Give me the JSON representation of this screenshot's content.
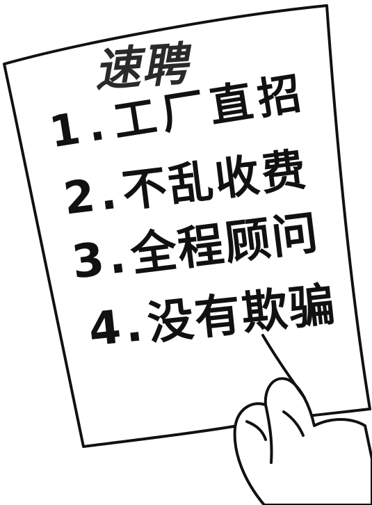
{
  "brand": {
    "label": "速聘"
  },
  "list": {
    "items": [
      {
        "number": "1",
        "separator": ".",
        "text": "工厂直招"
      },
      {
        "number": "2",
        "separator": ".",
        "text": "不乱收费"
      },
      {
        "number": "3",
        "separator": ".",
        "text": "全程顾问"
      },
      {
        "number": "4",
        "separator": ".",
        "text": "没有欺骗"
      }
    ]
  },
  "colors": {
    "ink": "#111111",
    "paper": "#ffffff",
    "brand": "#2a2a2a"
  },
  "icons": {
    "hand": "hand-holding-paper-icon"
  }
}
